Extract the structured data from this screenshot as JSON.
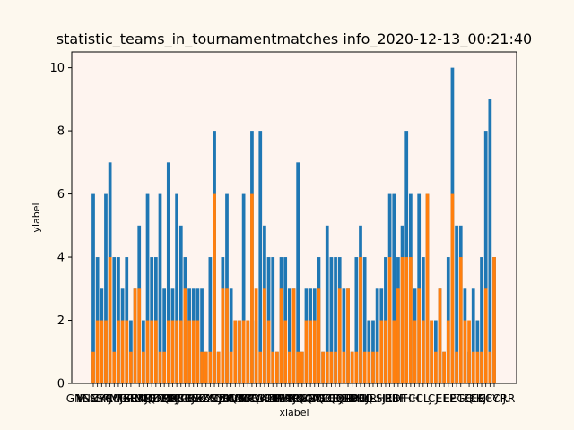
{
  "chart_data": {
    "type": "bar",
    "title": "statistic_teams_in_tournamentmatches info_2020-12-13_00:21:40",
    "xlabel": "xlabel",
    "ylabel": "ylabel",
    "ylim": [
      0,
      10.5
    ],
    "yticks": [
      0,
      2,
      4,
      6,
      8,
      10
    ],
    "grid": false,
    "legend": "none",
    "colors": {
      "series1": "#1f77b4",
      "series2": "#ff7f0e",
      "plot_bg": "#fef4ef",
      "fig_bg": "#fdf8ee"
    },
    "visible_category_labels": [
      "M",
      "GNNNY J",
      "YSSSPMG",
      "ZYCCJXS",
      "RRMGRMQ",
      "FFHKJDF",
      "RMQZZDJ",
      "SEEKEPBBJ",
      "MMDMKCCYKYEJ",
      "OOQBBCBBXQSQ",
      "RRJOKKKSYUVK",
      "PPBBZMEMMBB",
      "K",
      "YCCKCC",
      "AAALLXFR",
      "TTQKMMXJ",
      "NRWEEBCCCRT",
      "KZHHYSAAS",
      "HRRRGGQBBJ",
      "YRKKDCCDEB",
      "KQQMEBBLDEQ",
      "FQQRRC",
      "PBBJ",
      "RHHRHR",
      "KLLSJEDT",
      "BBF",
      "HHH",
      "CCLJ",
      "CJ",
      "EEP",
      "EEGQ",
      "TEER",
      "KKJFY",
      "ECCRR",
      "J."
    ],
    "series": [
      {
        "name": "",
        "values": [
          6,
          4,
          3,
          6,
          7,
          4,
          4,
          3,
          4,
          2,
          3,
          5,
          2,
          6,
          4,
          4,
          6,
          3,
          7,
          3,
          6,
          5,
          4,
          3,
          3,
          3,
          3,
          1,
          4,
          8,
          1,
          4,
          6,
          3,
          2,
          2,
          6,
          2,
          8,
          2,
          8,
          5,
          4,
          4,
          1,
          4,
          4,
          3,
          3,
          7,
          1,
          3,
          3,
          3,
          4,
          1,
          5,
          4,
          4,
          4,
          3,
          3,
          1,
          4,
          5,
          4,
          2,
          2,
          3,
          3,
          4,
          6,
          6,
          4,
          5,
          8,
          6,
          3,
          6,
          4,
          6,
          2,
          2,
          3,
          1,
          4,
          10,
          5,
          5,
          3,
          1,
          3,
          2,
          4,
          8,
          9,
          4
        ]
      },
      {
        "name": "",
        "values": [
          1,
          2,
          2,
          2,
          4,
          1,
          2,
          2,
          2,
          1,
          3,
          3,
          1,
          2,
          2,
          2,
          1,
          1,
          2,
          2,
          2,
          2,
          3,
          2,
          2,
          2,
          1,
          1,
          1,
          6,
          1,
          3,
          3,
          1,
          2,
          2,
          2,
          2,
          6,
          3,
          1,
          3,
          2,
          1,
          1,
          3,
          2,
          1,
          3,
          1,
          1,
          2,
          2,
          2,
          3,
          1,
          1,
          1,
          1,
          3,
          1,
          3,
          1,
          1,
          4,
          1,
          1,
          1,
          1,
          2,
          2,
          4,
          2,
          3,
          4,
          4,
          4,
          2,
          3,
          2,
          6,
          2,
          1,
          3,
          1,
          2,
          6,
          1,
          4,
          2,
          2,
          1,
          1,
          1,
          3,
          1,
          4
        ]
      }
    ]
  }
}
